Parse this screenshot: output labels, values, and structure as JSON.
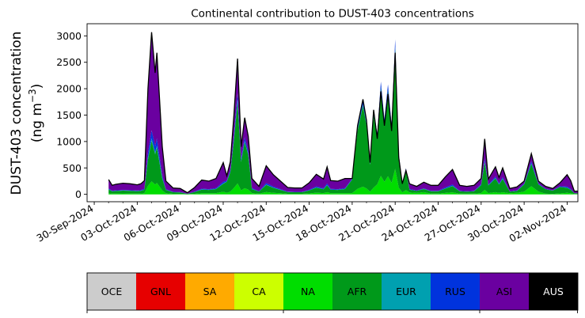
{
  "chart_data": {
    "type": "area",
    "stacked": true,
    "title": "Continental contribution to DUST-403 concentrations",
    "ylabel_line1": "DUST-403 concentration",
    "ylabel_line2": "(ng m",
    "ylabel_sup": "−3",
    "ylabel_end": ")",
    "xlim": [
      "2024-09-29T12:00",
      "2024-11-02T18:00"
    ],
    "ylim": [
      -140,
      3230
    ],
    "x_ticks": [
      "30-Sep-2024",
      "03-Oct-2024",
      "06-Oct-2024",
      "09-Oct-2024",
      "12-Oct-2024",
      "15-Oct-2024",
      "18-Oct-2024",
      "21-Oct-2024",
      "24-Oct-2024",
      "27-Oct-2024",
      "30-Oct-2024",
      "02-Nov-2024"
    ],
    "y_ticks": [
      "0",
      "500",
      "1000",
      "1500",
      "2000",
      "2500",
      "3000"
    ],
    "y_tick_values": [
      0,
      500,
      1000,
      1500,
      2000,
      2500,
      3000
    ],
    "grid": false,
    "legend_position": "bottom",
    "series": [
      {
        "name": "OCE",
        "color": "#cccccc"
      },
      {
        "name": "GNL",
        "color": "#e60000"
      },
      {
        "name": "SA",
        "color": "#ffaa00"
      },
      {
        "name": "CA",
        "color": "#ccff00"
      },
      {
        "name": "NA",
        "color": "#00dd00"
      },
      {
        "name": "AFR",
        "color": "#00991a"
      },
      {
        "name": "EUR",
        "color": "#00a0b0"
      },
      {
        "name": "RUS",
        "color": "#0033dd"
      },
      {
        "name": "ASI",
        "color": "#6a00a0"
      },
      {
        "name": "AUS",
        "color": "#000000"
      }
    ],
    "total_points": [
      [
        "2024-10-01T00:00",
        280
      ],
      [
        "2024-10-01T06:00",
        170
      ],
      [
        "2024-10-01T12:00",
        190
      ],
      [
        "2024-10-02T00:00",
        210
      ],
      [
        "2024-10-02T12:00",
        200
      ],
      [
        "2024-10-03T00:00",
        180
      ],
      [
        "2024-10-03T06:00",
        200
      ],
      [
        "2024-10-03T12:00",
        260
      ],
      [
        "2024-10-03T18:00",
        2000
      ],
      [
        "2024-10-04T00:00",
        3070
      ],
      [
        "2024-10-04T06:00",
        2300
      ],
      [
        "2024-10-04T09:00",
        2680
      ],
      [
        "2024-10-04T18:00",
        900
      ],
      [
        "2024-10-05T00:00",
        250
      ],
      [
        "2024-10-05T12:00",
        120
      ],
      [
        "2024-10-06T00:00",
        110
      ],
      [
        "2024-10-06T12:00",
        30
      ],
      [
        "2024-10-07T00:00",
        130
      ],
      [
        "2024-10-07T12:00",
        270
      ],
      [
        "2024-10-08T00:00",
        250
      ],
      [
        "2024-10-08T12:00",
        300
      ],
      [
        "2024-10-09T00:00",
        600
      ],
      [
        "2024-10-09T06:00",
        350
      ],
      [
        "2024-10-09T12:00",
        620
      ],
      [
        "2024-10-09T18:00",
        1500
      ],
      [
        "2024-10-10T00:00",
        2570
      ],
      [
        "2024-10-10T06:00",
        900
      ],
      [
        "2024-10-10T12:00",
        1450
      ],
      [
        "2024-10-10T18:00",
        1100
      ],
      [
        "2024-10-11T00:00",
        300
      ],
      [
        "2024-10-11T12:00",
        150
      ],
      [
        "2024-10-12T00:00",
        540
      ],
      [
        "2024-10-12T12:00",
        370
      ],
      [
        "2024-10-13T00:00",
        250
      ],
      [
        "2024-10-13T12:00",
        130
      ],
      [
        "2024-10-14T00:00",
        120
      ],
      [
        "2024-10-14T12:00",
        120
      ],
      [
        "2024-10-15T00:00",
        220
      ],
      [
        "2024-10-15T12:00",
        380
      ],
      [
        "2024-10-16T00:00",
        290
      ],
      [
        "2024-10-16T06:00",
        520
      ],
      [
        "2024-10-16T12:00",
        260
      ],
      [
        "2024-10-17T00:00",
        250
      ],
      [
        "2024-10-17T12:00",
        300
      ],
      [
        "2024-10-18T00:00",
        300
      ],
      [
        "2024-10-18T09:00",
        1300
      ],
      [
        "2024-10-18T18:00",
        1800
      ],
      [
        "2024-10-19T00:00",
        1400
      ],
      [
        "2024-10-19T06:00",
        600
      ],
      [
        "2024-10-19T12:00",
        1600
      ],
      [
        "2024-10-19T18:00",
        1050
      ],
      [
        "2024-10-20T00:00",
        1950
      ],
      [
        "2024-10-20T06:00",
        1300
      ],
      [
        "2024-10-20T12:00",
        1900
      ],
      [
        "2024-10-20T18:00",
        1200
      ],
      [
        "2024-10-21T00:00",
        2680
      ],
      [
        "2024-10-21T06:00",
        700
      ],
      [
        "2024-10-21T12:00",
        200
      ],
      [
        "2024-10-21T18:00",
        450
      ],
      [
        "2024-10-22T00:00",
        200
      ],
      [
        "2024-10-22T12:00",
        150
      ],
      [
        "2024-10-23T00:00",
        230
      ],
      [
        "2024-10-23T12:00",
        170
      ],
      [
        "2024-10-24T00:00",
        170
      ],
      [
        "2024-10-24T12:00",
        330
      ],
      [
        "2024-10-25T00:00",
        470
      ],
      [
        "2024-10-25T12:00",
        170
      ],
      [
        "2024-10-26T00:00",
        150
      ],
      [
        "2024-10-26T12:00",
        170
      ],
      [
        "2024-10-27T00:00",
        300
      ],
      [
        "2024-10-27T06:00",
        1050
      ],
      [
        "2024-10-27T12:00",
        290
      ],
      [
        "2024-10-28T00:00",
        520
      ],
      [
        "2024-10-28T06:00",
        320
      ],
      [
        "2024-10-28T12:00",
        500
      ],
      [
        "2024-10-29T00:00",
        110
      ],
      [
        "2024-10-29T12:00",
        140
      ],
      [
        "2024-10-30T00:00",
        250
      ],
      [
        "2024-10-30T12:00",
        770
      ],
      [
        "2024-10-31T00:00",
        250
      ],
      [
        "2024-10-31T12:00",
        150
      ],
      [
        "2024-11-01T00:00",
        110
      ],
      [
        "2024-11-01T12:00",
        220
      ],
      [
        "2024-11-02T00:00",
        370
      ],
      [
        "2024-11-02T06:00",
        260
      ],
      [
        "2024-11-02T12:00",
        60
      ],
      [
        "2024-11-02T18:00",
        60
      ]
    ]
  }
}
